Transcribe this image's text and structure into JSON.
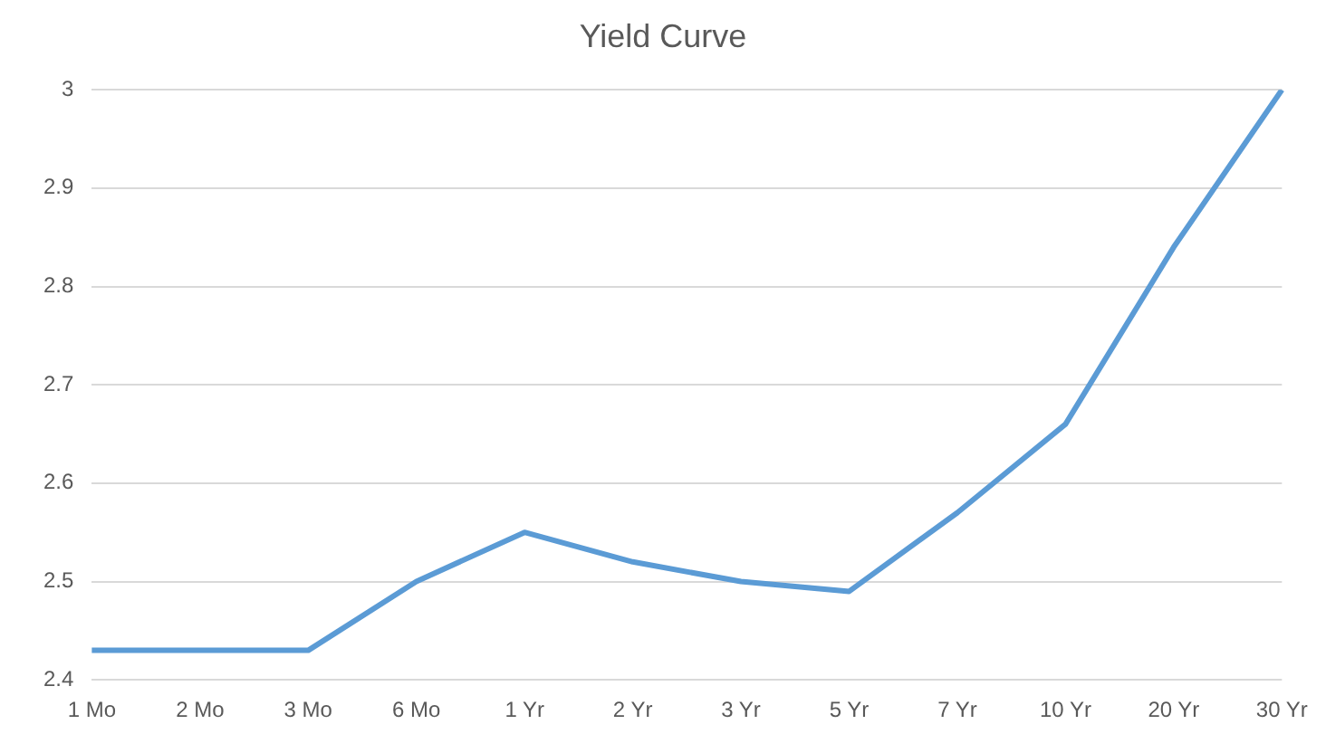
{
  "chart_data": {
    "type": "line",
    "title": "Yield Curve",
    "categories": [
      "1 Mo",
      "2 Mo",
      "3 Mo",
      "6 Mo",
      "1 Yr",
      "2 Yr",
      "3 Yr",
      "5 Yr",
      "7 Yr",
      "10 Yr",
      "20 Yr",
      "30 Yr"
    ],
    "series": [
      {
        "color": "#5b9bd5",
        "values": [
          2.43,
          2.43,
          2.43,
          2.5,
          2.55,
          2.52,
          2.5,
          2.49,
          2.57,
          2.66,
          2.84,
          3.0
        ]
      }
    ],
    "ylim": [
      2.4,
      3
    ],
    "yticks": [
      2.4,
      2.5,
      2.6,
      2.7,
      2.8,
      2.9,
      3
    ],
    "grid": "y",
    "legend": false,
    "marker": "none",
    "line_style": "solid"
  }
}
